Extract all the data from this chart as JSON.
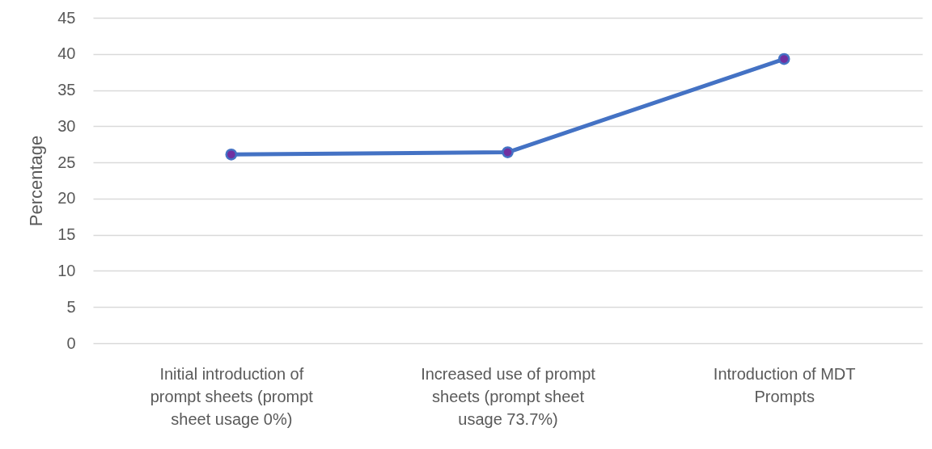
{
  "chart_data": {
    "type": "line",
    "ylabel": "Percentage",
    "categories": [
      "Initial introduction of prompt sheets (prompt sheet usage 0%)",
      "Increased use of prompt sheets (prompt sheet usage 73.7%)",
      "Introduction of MDT Prompts"
    ],
    "series": [
      {
        "color": "#4472c4",
        "values": [
          26.1,
          26.4,
          39.3
        ]
      }
    ],
    "ylim": [
      0,
      45
    ],
    "yticks": [
      0,
      5,
      10,
      15,
      20,
      25,
      30,
      35,
      40,
      45
    ],
    "grid": "y",
    "marker": "circle",
    "line_style": "solid"
  }
}
